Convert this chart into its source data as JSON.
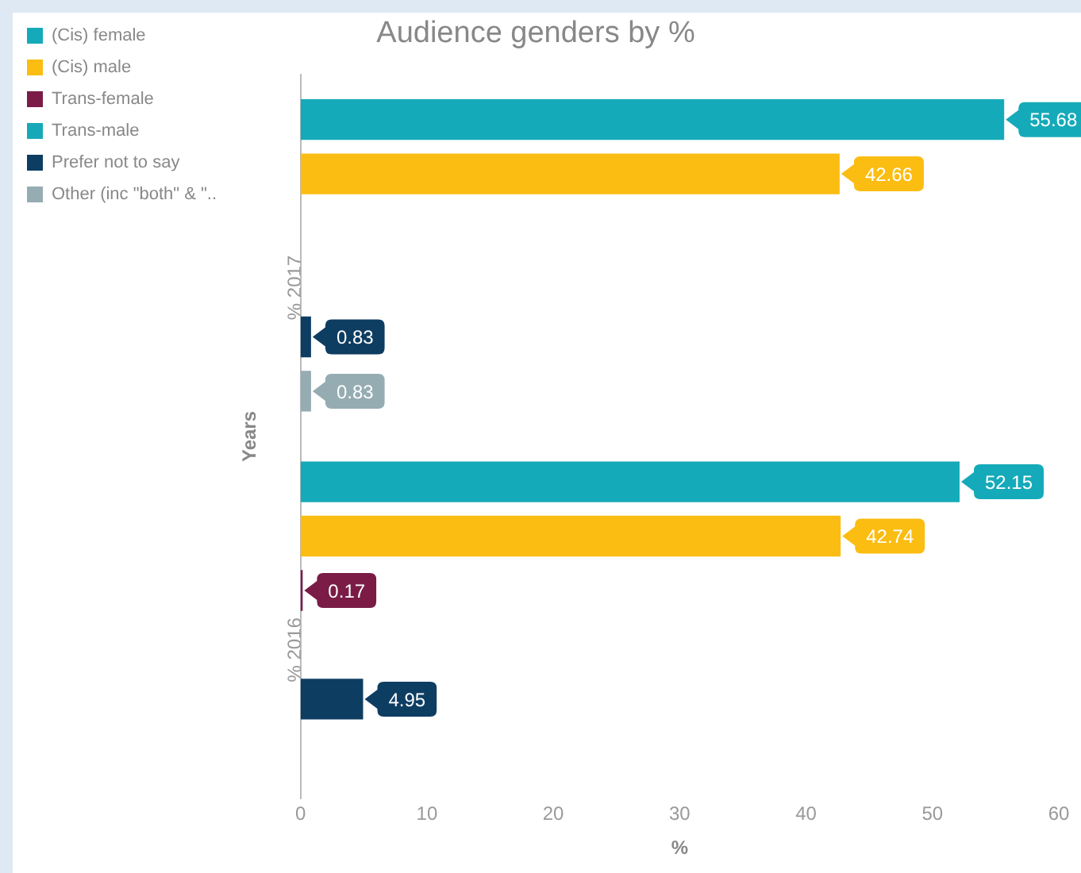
{
  "chart_data": {
    "type": "bar",
    "orientation": "horizontal",
    "title": "Audience genders by %",
    "xlabel": "%",
    "ylabel": "Years",
    "categories": [
      "% 2017",
      "% 2016"
    ],
    "series": [
      {
        "name": "(Cis) female",
        "color": "#15aab9",
        "values": [
          55.68,
          52.15
        ]
      },
      {
        "name": "(Cis) male",
        "color": "#fbbd12",
        "values": [
          42.66,
          42.74
        ]
      },
      {
        "name": "Trans-female",
        "color": "#7a1c46",
        "values": [
          null,
          0.17
        ]
      },
      {
        "name": "Trans-male",
        "color": "#17a8b8",
        "values": [
          null,
          null
        ]
      },
      {
        "name": "Prefer not to say",
        "color": "#0e3d62",
        "values": [
          0.83,
          4.95
        ]
      },
      {
        "name": "Other (inc \"both\" & \"..",
        "color": "#95acb2",
        "values": [
          0.83,
          null
        ]
      }
    ],
    "xlim": [
      0,
      60
    ],
    "xticks": [
      0,
      10,
      20,
      30,
      40,
      50,
      60
    ],
    "grid": false,
    "legend": "top left",
    "data_labels": true
  }
}
